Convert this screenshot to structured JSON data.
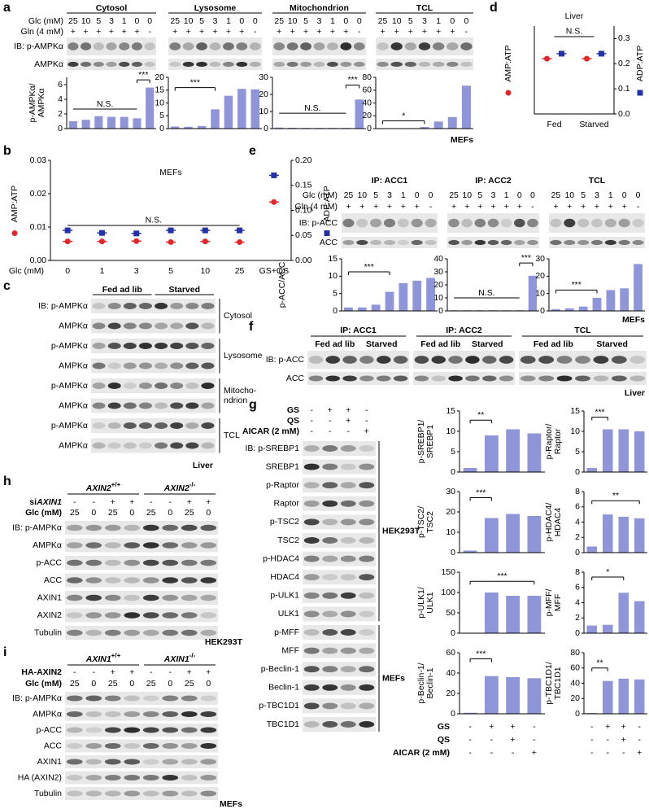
{
  "panel_labels": [
    "a",
    "b",
    "c",
    "d",
    "e",
    "f",
    "g",
    "h",
    "i"
  ],
  "a": {
    "groups": [
      "Cytosol",
      "Lysosome",
      "Mitochondrion",
      "TCL"
    ],
    "row_labels": [
      "Glc (mM)",
      "Gln (4 mM)"
    ],
    "glc": [
      25,
      10,
      5,
      3,
      1,
      0,
      0
    ],
    "gln": [
      "+",
      "+",
      "+",
      "+",
      "+",
      "+",
      "-"
    ],
    "blots": [
      "IB: p-AMPKα",
      "AMPKα"
    ],
    "cell": "MEFs"
  },
  "c": {
    "groups": [
      "Fed ad lib",
      "Starved"
    ],
    "blots": [
      "IB: p-AMPKα",
      "AMPKα",
      "p-AMPKα",
      "AMPKα",
      "p-AMPKα",
      "AMPKα",
      "p-AMPKα",
      "AMPKα"
    ],
    "fractions": [
      [
        "Cytosol"
      ],
      [
        "Lysosome"
      ],
      [
        "Mitocho-",
        "ndrion"
      ],
      [
        "TCL"
      ]
    ],
    "tissue": "Liver"
  },
  "e": {
    "groups": [
      "IP: ACC1",
      "IP: ACC2",
      "TCL"
    ],
    "row_labels": [
      "Glc (mM)",
      "Gln (4 mM)"
    ],
    "glc": [
      25,
      10,
      5,
      3,
      1,
      0,
      0
    ],
    "gln": [
      "+",
      "+",
      "+",
      "+",
      "+",
      "+",
      "-"
    ],
    "blots": [
      "IB: p-ACC",
      "ACC"
    ],
    "cell": "MEFs"
  },
  "f": {
    "groups": [
      "IP: ACC1",
      "IP: ACC2",
      "TCL"
    ],
    "conditions": [
      "Fed ad lib",
      "Starved"
    ],
    "blots": [
      "IB: p-ACC",
      "ACC"
    ],
    "tissue": "Liver"
  },
  "g": {
    "treatments": [
      {
        "label": "GS",
        "signs": [
          "-",
          "+",
          "+",
          "-"
        ]
      },
      {
        "label": "QS",
        "signs": [
          "-",
          "-",
          "+",
          "-"
        ]
      },
      {
        "label": "AICAR (2 mM)",
        "signs": [
          "-",
          "-",
          "-",
          "+"
        ]
      }
    ],
    "blots": [
      "IB: p-SREBP1",
      "SREBP1",
      "p-Raptor",
      "Raptor",
      "p-TSC2",
      "TSC2",
      "p-HDAC4",
      "HDAC4",
      "p-ULK1",
      "ULK1",
      "p-MFF",
      "MFF",
      "p-Beclin-1",
      "Beclin-1",
      "p-TBC1D1",
      "TBC1D1"
    ],
    "cells": [
      "HEK293T",
      "MEFs"
    ]
  },
  "h": {
    "genotypes": [
      {
        "gene": "AXIN2",
        "genotype": "+/+"
      },
      {
        "gene": "AXIN2",
        "genotype": "-/-"
      }
    ],
    "sirna": {
      "prefix": "si",
      "gene": "AXIN1",
      "signs": [
        "-",
        "-",
        "+",
        "+",
        "-",
        "-",
        "+",
        "+"
      ]
    },
    "glc": {
      "label": "Glc (mM)",
      "values": [
        25,
        0,
        25,
        0,
        25,
        0,
        25,
        0
      ]
    },
    "blots": [
      "IB: p-AMPKα",
      "AMPKα",
      "p-ACC",
      "ACC",
      "AXIN1",
      "AXIN2",
      "Tubulin"
    ],
    "cell": "HEK293T"
  },
  "i": {
    "genotypes": [
      {
        "gene": "AXIN1",
        "genotype": "+/+"
      },
      {
        "gene": "AXIN1",
        "genotype": "-/-"
      }
    ],
    "transfection": {
      "label": "HA-AXIN2",
      "signs": [
        "-",
        "-",
        "+",
        "+",
        "-",
        "-",
        "+",
        "+"
      ]
    },
    "glc": {
      "label": "Glc (mM)",
      "values": [
        25,
        0,
        25,
        0,
        25,
        0,
        25,
        0
      ]
    },
    "blots": [
      "IB: p-AMPKα",
      "AMPKα",
      "p-ACC",
      "ACC",
      "AXIN1",
      "HA (AXIN2)",
      "Tubulin"
    ],
    "cell": "MEFs"
  },
  "chart_data": [
    {
      "type": "bar",
      "ylabel": [
        "p-AMPKα/",
        "AMPKα"
      ],
      "values": [
        1.0,
        1.2,
        1.7,
        1.6,
        1.6,
        1.4,
        5.6
      ],
      "ylim": [
        0,
        7
      ],
      "yticks": [
        0,
        2,
        4,
        6
      ],
      "color": "#8f95d9",
      "annotations": [
        "N.S.",
        "***"
      ]
    },
    {
      "type": "bar",
      "values": [
        0.8,
        0.7,
        1.0,
        7.5,
        12.8,
        15.5,
        15.3
      ],
      "ylim": [
        0,
        20
      ],
      "yticks": [
        0,
        5,
        10,
        15,
        20
      ],
      "color": "#8f95d9",
      "annotations": [
        "***"
      ]
    },
    {
      "type": "bar",
      "values": [
        0.6,
        0.5,
        0.4,
        0.4,
        0.4,
        0.4,
        17
      ],
      "ylim": [
        0,
        30
      ],
      "yticks": [
        0,
        10,
        20,
        30
      ],
      "color": "#8f95d9",
      "annotations": [
        "N.S.",
        "***"
      ]
    },
    {
      "type": "bar",
      "values": [
        0.5,
        0.5,
        0.7,
        2.5,
        11,
        18,
        67
      ],
      "ylim": [
        0,
        80
      ],
      "yticks": [
        0,
        20,
        40,
        60,
        80
      ],
      "color": "#8f95d9",
      "annotations": [
        "*"
      ]
    },
    {
      "type": "scatter",
      "title": "MEFs",
      "xlabel": "Glc (mM)",
      "categories": [
        "0",
        "1",
        "3",
        "5",
        "10",
        "25",
        "GS+QS"
      ],
      "series": [
        {
          "name": "AMP:ATP",
          "color": "#e3262b",
          "values": [
            0.0057,
            0.0057,
            0.0058,
            0.0055,
            0.0057,
            0.0055,
            0.0175
          ]
        },
        {
          "name": "ADP:ATP",
          "color": "#2431a8",
          "axis": "y2",
          "values": [
            0.06,
            0.055,
            0.054,
            0.06,
            0.06,
            0.06,
            0.17
          ]
        }
      ],
      "ylim": [
        0,
        0.03
      ],
      "yticks": [
        {
          "value": 0,
          "label": "0.00"
        },
        0.01,
        0.02,
        0.03
      ],
      "y2lim": [
        0,
        0.2
      ],
      "y2ticks": [
        {
          "value": 0,
          "label": "0.00"
        },
        0.05,
        {
          "value": 0.1,
          "label": "0.10"
        },
        0.15,
        {
          "value": 0.2,
          "label": "0.20"
        }
      ],
      "annotations": [
        "N.S."
      ]
    },
    {
      "type": "scatter",
      "title": "Liver",
      "categories": [
        "Fed",
        "Starved"
      ],
      "series": [
        {
          "name": "AMP:ATP",
          "color": "#e3262b",
          "axis": "y2",
          "values": [
            0.22,
            0.22
          ]
        },
        {
          "name": "ADP:ATP",
          "color": "#2431a8",
          "axis": "y2",
          "values": [
            0.24,
            0.24
          ]
        }
      ],
      "y2lim": [
        0,
        0.35
      ],
      "y2ticks": [
        {
          "value": 0,
          "label": "0.0"
        },
        0.1,
        0.2,
        0.3
      ],
      "annotations": [
        "N.S."
      ]
    },
    {
      "type": "bar",
      "ylabel": [
        "p-ACC/ACC"
      ],
      "values": [
        1,
        1,
        1.8,
        5.5,
        8,
        8.7,
        9.5
      ],
      "ylim": [
        0,
        15
      ],
      "yticks": [
        0,
        5,
        10,
        15
      ],
      "color": "#8f95d9",
      "annotations": [
        "***"
      ]
    },
    {
      "type": "bar",
      "values": [
        0.5,
        0.5,
        0.5,
        0.5,
        0.5,
        0.5,
        27
      ],
      "ylim": [
        0,
        40
      ],
      "yticks": [
        0,
        10,
        20,
        30,
        40
      ],
      "color": "#8f95d9",
      "annotations": [
        "N.S.",
        "***"
      ]
    },
    {
      "type": "bar",
      "values": [
        1,
        1.5,
        2.5,
        7.5,
        12,
        13,
        27
      ],
      "ylim": [
        0,
        30
      ],
      "yticks": [
        0,
        10,
        20,
        30
      ],
      "color": "#8f95d9",
      "annotations": [
        "***"
      ]
    },
    {
      "type": "bar",
      "ylabel": [
        "p-SREBP1/",
        "SREBP1"
      ],
      "values": [
        1,
        9,
        10.5,
        9.5
      ],
      "ylim": [
        0,
        15
      ],
      "yticks": [
        0,
        5,
        10,
        15
      ],
      "color": "#8f95d9",
      "annotations": [
        "**"
      ]
    },
    {
      "type": "bar",
      "ylabel": [
        "p-Raptor/",
        "Raptor"
      ],
      "values": [
        1,
        10.5,
        10.5,
        10
      ],
      "ylim": [
        0,
        15
      ],
      "yticks": [
        0,
        5,
        10,
        15
      ],
      "color": "#8f95d9",
      "annotations": [
        "***"
      ]
    },
    {
      "type": "bar",
      "ylabel": [
        "p-TSC2/",
        "TSC2"
      ],
      "values": [
        1,
        17,
        19,
        18
      ],
      "ylim": [
        0,
        30
      ],
      "yticks": [
        0,
        10,
        20,
        30
      ],
      "color": "#8f95d9",
      "annotations": [
        "***"
      ]
    },
    {
      "type": "bar",
      "ylabel": [
        "p-HDAC4/",
        "HDAC4"
      ],
      "values": [
        0.8,
        5,
        4.7,
        4.5
      ],
      "ylim": [
        0,
        8
      ],
      "yticks": [
        0,
        2,
        4,
        6,
        8
      ],
      "color": "#8f95d9",
      "annotations": [
        "**"
      ]
    },
    {
      "type": "bar",
      "ylabel": [
        "p-ULK1/",
        "ULK1"
      ],
      "values": [
        1,
        100,
        92,
        92
      ],
      "ylim": [
        0,
        150
      ],
      "yticks": [
        0,
        50,
        100,
        150
      ],
      "color": "#8f95d9",
      "annotations": [
        "***"
      ]
    },
    {
      "type": "bar",
      "ylabel": [
        "p-MFF/",
        "MFF"
      ],
      "values": [
        1,
        1.1,
        5.3,
        4.2
      ],
      "ylim": [
        0,
        8
      ],
      "yticks": [
        0,
        2,
        4,
        6,
        8
      ],
      "color": "#8f95d9",
      "annotations": [
        "*"
      ]
    },
    {
      "type": "bar",
      "ylabel": [
        "p-Beclin-1/",
        "Beclin-1"
      ],
      "values": [
        1,
        37,
        36,
        35
      ],
      "ylim": [
        0,
        60
      ],
      "yticks": [
        0,
        20,
        40,
        60
      ],
      "color": "#8f95d9",
      "annotations": [
        "***"
      ]
    },
    {
      "type": "bar",
      "ylabel": [
        "p-TBC1D1/",
        "TBC1D1"
      ],
      "values": [
        1,
        43,
        46,
        45
      ],
      "ylim": [
        0,
        80
      ],
      "yticks": [
        0,
        20,
        40,
        60,
        80
      ],
      "color": "#8f95d9",
      "annotations": [
        "**"
      ]
    }
  ]
}
